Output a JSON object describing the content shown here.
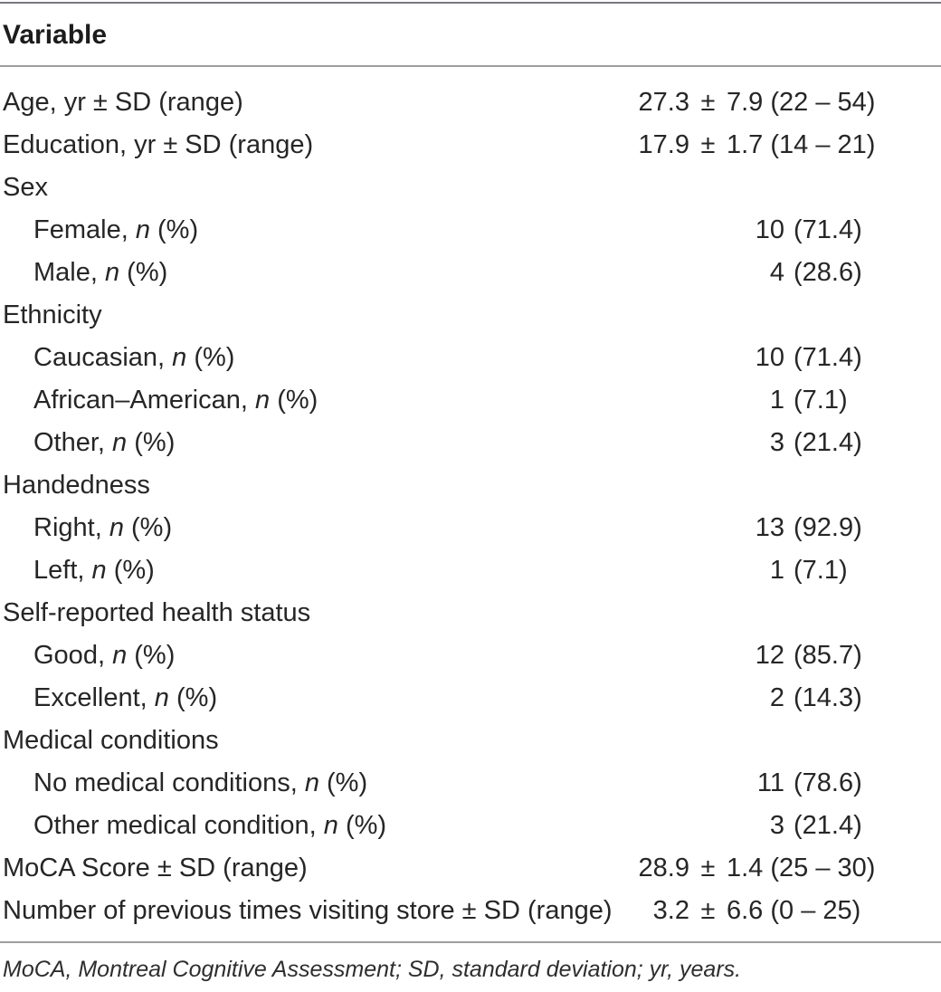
{
  "table": {
    "header": "Variable",
    "footnote": "MoCA, Montreal Cognitive Assessment; SD, standard deviation; yr, years.",
    "colors": {
      "background": "#ffffff",
      "text": "#262626",
      "rule_top": "#76797c",
      "rule_mid": "#9c9ea0"
    },
    "rows": [
      {
        "type": "pm",
        "indent": false,
        "label": [
          {
            "t": "Age, yr ± SD (range)"
          }
        ],
        "value": {
          "num": "27.3",
          "pm": "±",
          "rest": "7.9 (22 – 54)"
        }
      },
      {
        "type": "pm",
        "indent": false,
        "label": [
          {
            "t": "Education, yr ± SD (range)"
          }
        ],
        "value": {
          "num": "17.9",
          "pm": "±",
          "rest": "1.7 (14 – 21)"
        }
      },
      {
        "type": "section",
        "indent": false,
        "label": [
          {
            "t": "Sex"
          }
        ]
      },
      {
        "type": "npct",
        "indent": true,
        "label": [
          {
            "t": "Female, "
          },
          {
            "t": "n",
            "i": true
          },
          {
            "t": " (%)"
          }
        ],
        "value": {
          "n": "10",
          "pct": "(71.4)"
        }
      },
      {
        "type": "npct",
        "indent": true,
        "label": [
          {
            "t": "Male, "
          },
          {
            "t": "n",
            "i": true
          },
          {
            "t": " (%)"
          }
        ],
        "value": {
          "n": "4",
          "pct": "(28.6)"
        }
      },
      {
        "type": "section",
        "indent": false,
        "label": [
          {
            "t": "Ethnicity"
          }
        ]
      },
      {
        "type": "npct",
        "indent": true,
        "label": [
          {
            "t": "Caucasian, "
          },
          {
            "t": "n",
            "i": true
          },
          {
            "t": " (%)"
          }
        ],
        "value": {
          "n": "10",
          "pct": "(71.4)"
        }
      },
      {
        "type": "npct",
        "indent": true,
        "label": [
          {
            "t": "African–American, "
          },
          {
            "t": "n",
            "i": true
          },
          {
            "t": " (%)"
          }
        ],
        "value": {
          "n": "1",
          "pct": "(7.1)"
        }
      },
      {
        "type": "npct",
        "indent": true,
        "label": [
          {
            "t": "Other, "
          },
          {
            "t": "n",
            "i": true
          },
          {
            "t": " (%)"
          }
        ],
        "value": {
          "n": "3",
          "pct": "(21.4)"
        }
      },
      {
        "type": "section",
        "indent": false,
        "label": [
          {
            "t": "Handedness"
          }
        ]
      },
      {
        "type": "npct",
        "indent": true,
        "label": [
          {
            "t": "Right, "
          },
          {
            "t": "n",
            "i": true
          },
          {
            "t": " (%)"
          }
        ],
        "value": {
          "n": "13",
          "pct": "(92.9)"
        }
      },
      {
        "type": "npct",
        "indent": true,
        "label": [
          {
            "t": "Left, "
          },
          {
            "t": "n",
            "i": true
          },
          {
            "t": " (%)"
          }
        ],
        "value": {
          "n": "1",
          "pct": "(7.1)"
        }
      },
      {
        "type": "section",
        "indent": false,
        "label": [
          {
            "t": "Self-reported health status"
          }
        ]
      },
      {
        "type": "npct",
        "indent": true,
        "label": [
          {
            "t": "Good, "
          },
          {
            "t": "n",
            "i": true
          },
          {
            "t": " (%)"
          }
        ],
        "value": {
          "n": "12",
          "pct": "(85.7)"
        }
      },
      {
        "type": "npct",
        "indent": true,
        "label": [
          {
            "t": "Excellent, "
          },
          {
            "t": "n",
            "i": true
          },
          {
            "t": " (%)"
          }
        ],
        "value": {
          "n": "2",
          "pct": "(14.3)"
        }
      },
      {
        "type": "section",
        "indent": false,
        "label": [
          {
            "t": "Medical conditions"
          }
        ]
      },
      {
        "type": "npct",
        "indent": true,
        "label": [
          {
            "t": "No medical conditions, "
          },
          {
            "t": "n",
            "i": true
          },
          {
            "t": " (%)"
          }
        ],
        "value": {
          "n": "11",
          "pct": "(78.6)"
        }
      },
      {
        "type": "npct",
        "indent": true,
        "label": [
          {
            "t": "Other medical condition, "
          },
          {
            "t": "n",
            "i": true
          },
          {
            "t": " (%)"
          }
        ],
        "value": {
          "n": "3",
          "pct": "(21.4)"
        }
      },
      {
        "type": "pm",
        "indent": false,
        "label": [
          {
            "t": "MoCA Score ± SD (range)"
          }
        ],
        "value": {
          "num": "28.9",
          "pm": "±",
          "rest": "1.4 (25 – 30)"
        }
      },
      {
        "type": "pm",
        "indent": false,
        "label": [
          {
            "t": "Number of previous times visiting store ± SD (range)"
          }
        ],
        "value": {
          "num": "3.2",
          "pm": "±",
          "rest": "6.6 (0 – 25)"
        }
      }
    ]
  }
}
